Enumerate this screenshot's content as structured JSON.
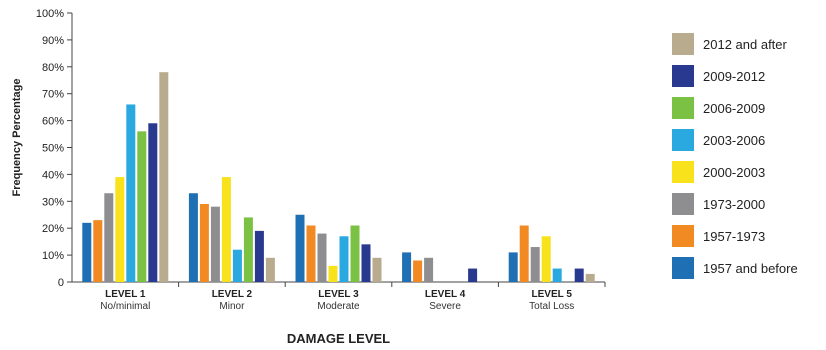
{
  "chart_data": {
    "type": "bar",
    "title": "",
    "xlabel": "DAMAGE LEVEL",
    "ylabel": "Frequency Percentage",
    "ylim": [
      0,
      100
    ],
    "yticks": [
      "0",
      "10%",
      "20%",
      "30%",
      "40%",
      "50%",
      "60%",
      "70%",
      "80%",
      "90%",
      "100%"
    ],
    "categories": [
      {
        "label": "LEVEL 1",
        "sub": "No/minimal"
      },
      {
        "label": "LEVEL 2",
        "sub": "Minor"
      },
      {
        "label": "LEVEL 3",
        "sub": "Moderate"
      },
      {
        "label": "LEVEL 4",
        "sub": "Severe"
      },
      {
        "label": "LEVEL 5",
        "sub": "Total Loss"
      }
    ],
    "series": [
      {
        "name": "1957 and before",
        "color": "#1f6fb5",
        "values": [
          22,
          33,
          25,
          11,
          11
        ]
      },
      {
        "name": "1957-1973",
        "color": "#f18a23",
        "values": [
          23,
          29,
          21,
          8,
          21
        ]
      },
      {
        "name": "1973-2000",
        "color": "#8e8e91",
        "values": [
          33,
          28,
          18,
          9,
          13
        ]
      },
      {
        "name": "2000-2003",
        "color": "#f7e21c",
        "values": [
          39,
          39,
          6,
          0,
          17
        ]
      },
      {
        "name": "2003-2006",
        "color": "#2aa8e0",
        "values": [
          66,
          12,
          17,
          0,
          5
        ]
      },
      {
        "name": "2006-2009",
        "color": "#7bc143",
        "values": [
          56,
          24,
          21,
          0,
          0
        ]
      },
      {
        "name": "2009-2012",
        "color": "#2a3990",
        "values": [
          59,
          19,
          14,
          5,
          5
        ]
      },
      {
        "name": "2012 and after",
        "color": "#b9ab8d",
        "values": [
          78,
          9,
          9,
          0,
          3
        ]
      }
    ],
    "grid": false,
    "legend": "right"
  }
}
